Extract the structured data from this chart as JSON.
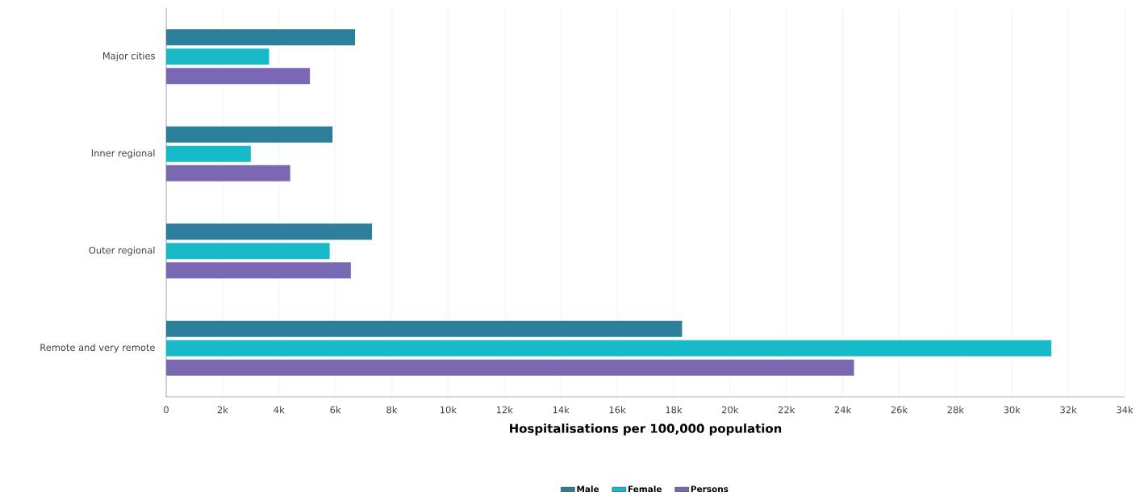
{
  "chart_data": {
    "type": "bar",
    "orientation": "horizontal",
    "xlabel": "Hospitalisations per 100,000 population",
    "categories": [
      "Major cities",
      "Inner regional",
      "Outer regional",
      "Remote and very remote"
    ],
    "series": [
      {
        "name": "Male",
        "color": "#2b7f98",
        "values": [
          6700,
          5900,
          7300,
          18300
        ]
      },
      {
        "name": "Female",
        "color": "#17bac8",
        "values": [
          3650,
          3000,
          5800,
          31400
        ]
      },
      {
        "name": "Persons",
        "color": "#7b68b5",
        "values": [
          5100,
          4400,
          6550,
          24400
        ]
      }
    ],
    "xlim": [
      0,
      34000
    ],
    "xticks": [
      0,
      {
        "value": 2000,
        "label": "2k"
      },
      {
        "value": 4000,
        "label": "4k"
      },
      {
        "value": 6000,
        "label": "6k"
      },
      {
        "value": 8000,
        "label": "8k"
      },
      {
        "value": 10000,
        "label": "10k"
      },
      {
        "value": 12000,
        "label": "12k"
      },
      {
        "value": 14000,
        "label": "14k"
      },
      {
        "value": 16000,
        "label": "16k"
      },
      {
        "value": 18000,
        "label": "18k"
      },
      {
        "value": 20000,
        "label": "20k"
      },
      {
        "value": 22000,
        "label": "22k"
      },
      {
        "value": 24000,
        "label": "24k"
      },
      {
        "value": 26000,
        "label": "26k"
      },
      {
        "value": 28000,
        "label": "28k"
      },
      {
        "value": 30000,
        "label": "30k"
      },
      {
        "value": 32000,
        "label": "32k"
      },
      {
        "value": 34000,
        "label": "34k"
      }
    ],
    "grid": "x",
    "legend": "bottom"
  }
}
